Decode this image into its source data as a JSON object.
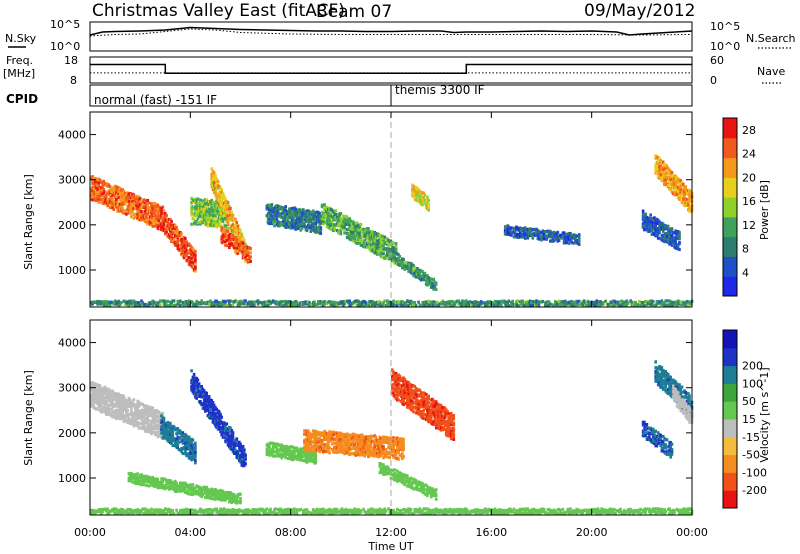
{
  "header": {
    "radar": "Christmas Valley East (fitACF)",
    "beam": "Beam 07",
    "date": "09/May/2012"
  },
  "noise_panel": {
    "left_label": "N.Sky",
    "right_label": "N.Search",
    "left_ticks": [
      "10^5",
      "10^0"
    ],
    "right_ticks": [
      "10^5",
      "10^0"
    ]
  },
  "freq_panel": {
    "left_label_1": "Freq.",
    "left_label_2": "[MHz]",
    "right_label": "Nave",
    "left_ticks": [
      "18",
      "8"
    ],
    "right_ticks": [
      "60",
      "0"
    ]
  },
  "cpid_panel": {
    "label": "CPID",
    "modes": [
      {
        "text": "normal (fast) -151 IF",
        "start_hour": 0.0
      },
      {
        "text": "themis 3300 IF",
        "start_hour": 12.0
      }
    ]
  },
  "x_axis": {
    "label": "Time UT",
    "ticks": [
      "00:00",
      "04:00",
      "08:00",
      "12:00",
      "16:00",
      "20:00",
      "00:00"
    ]
  },
  "colors": {
    "power": [
      "#1e28e6",
      "#1e50c8",
      "#2e7d6e",
      "#3fa25c",
      "#8ed12c",
      "#e8cf1e",
      "#f6971e",
      "#f05a1e",
      "#e81414"
    ],
    "velocity": [
      "#e81414",
      "#f2501a",
      "#f58c1e",
      "#f5bb3a",
      "#bdbdbd",
      "#64c850",
      "#3ca53c",
      "#1e7d96",
      "#1e32c8",
      "#1414b4"
    ]
  },
  "chart_data": [
    {
      "type": "line",
      "title": "",
      "series": [
        {
          "name": "N.Sky",
          "x": [
            0,
            0.5,
            1,
            2,
            3,
            4,
            5,
            6,
            7,
            8,
            9,
            10,
            11,
            12,
            13,
            14,
            14.5,
            15,
            16,
            17,
            18,
            19,
            20,
            21,
            21.5,
            22,
            23,
            24
          ],
          "values": [
            2.8,
            3.4,
            3.5,
            3.6,
            3.8,
            4.3,
            4.1,
            3.9,
            3.8,
            3.7,
            3.6,
            3.6,
            3.5,
            3.5,
            3.6,
            3.6,
            3.3,
            3.4,
            3.4,
            3.5,
            3.6,
            3.5,
            3.6,
            3.4,
            2.8,
            3.0,
            3.3,
            3.6
          ]
        },
        {
          "name": "N.Search",
          "x": [
            0,
            1,
            2,
            3,
            4,
            5,
            6,
            8,
            10,
            12,
            14,
            16,
            18,
            20,
            22,
            24
          ],
          "values": [
            2.6,
            2.9,
            3.0,
            3.5,
            4.0,
            3.8,
            3.3,
            3.0,
            2.9,
            2.9,
            2.9,
            2.9,
            2.9,
            2.9,
            2.8,
            2.9
          ]
        }
      ],
      "x_range": [
        0,
        24
      ],
      "ylim": [
        0,
        5
      ],
      "y_ticks": [
        "10^0",
        "10^5"
      ]
    },
    {
      "type": "line",
      "title": "",
      "series": [
        {
          "name": "Freq.",
          "x": [
            0,
            3,
            3,
            15,
            15,
            24
          ],
          "values": [
            15.5,
            15.5,
            11.5,
            11.5,
            15.5,
            15.5
          ]
        },
        {
          "name": "Nave",
          "x": [
            0,
            24
          ],
          "values": [
            22,
            22
          ]
        }
      ],
      "x_range": [
        0,
        24
      ],
      "ylim": [
        8,
        18
      ],
      "y2lim": [
        0,
        60
      ]
    },
    {
      "type": "heatmap",
      "title": "",
      "ylabel": "Slant Range [km]",
      "colorbar_label": "Power [dB]",
      "colorbar_ticks": [
        4,
        8,
        12,
        16,
        20,
        24,
        28
      ],
      "clim": [
        0,
        30
      ],
      "x_range": [
        0,
        24
      ],
      "ylim": [
        180,
        4500
      ],
      "y_ticks": [
        1000,
        2000,
        3000,
        4000
      ],
      "x_ticks": [
        "00:00",
        "04:00",
        "08:00",
        "12:00",
        "16:00",
        "20:00",
        "00:00"
      ],
      "regions": [
        {
          "t0": 0.0,
          "t1": 2.9,
          "r_start0": 2550,
          "r_start1": 1850,
          "width": 550,
          "level": 24
        },
        {
          "t0": 2.8,
          "t1": 4.2,
          "r_start0": 1900,
          "r_start1": 900,
          "width": 450,
          "level": 26
        },
        {
          "t0": 4.0,
          "t1": 5.5,
          "r_start0": 2000,
          "r_start1": 1900,
          "width": 600,
          "level": 14
        },
        {
          "t0": 4.8,
          "t1": 6.2,
          "r_start0": 2800,
          "r_start1": 1100,
          "width": 450,
          "level": 20
        },
        {
          "t0": 5.2,
          "t1": 6.4,
          "r_start0": 1600,
          "r_start1": 1100,
          "width": 350,
          "level": 26
        },
        {
          "t0": 7.0,
          "t1": 9.2,
          "r_start0": 2000,
          "r_start1": 1800,
          "width": 450,
          "level": 8
        },
        {
          "t0": 9.2,
          "t1": 12.2,
          "r_start0": 2000,
          "r_start1": 1100,
          "width": 450,
          "level": 12
        },
        {
          "t0": 12.0,
          "t1": 13.8,
          "r_start0": 1200,
          "r_start1": 500,
          "width": 250,
          "level": 10
        },
        {
          "t0": 12.8,
          "t1": 13.5,
          "r_start0": 2600,
          "r_start1": 2300,
          "width": 300,
          "level": 18
        },
        {
          "t0": 16.5,
          "t1": 19.5,
          "r_start0": 1750,
          "r_start1": 1550,
          "width": 250,
          "level": 6
        },
        {
          "t0": 22.5,
          "t1": 24.0,
          "r_start0": 3100,
          "r_start1": 2200,
          "width": 500,
          "level": 22
        },
        {
          "t0": 22.0,
          "t1": 23.5,
          "r_start0": 1900,
          "r_start1": 1400,
          "width": 400,
          "level": 6
        },
        {
          "t0": 0.0,
          "t1": 24.0,
          "r_start0": 200,
          "r_start1": 200,
          "width": 120,
          "level": 10
        }
      ]
    },
    {
      "type": "heatmap",
      "title": "",
      "ylabel": "Slant Range [km]",
      "xlabel": "Time UT",
      "colorbar_label": "Velocity [m s^-1]",
      "colorbar_ticks": [
        -200,
        -100,
        -50,
        -15,
        15,
        50,
        100,
        200
      ],
      "clim": [
        -250,
        250
      ],
      "x_range": [
        0,
        24
      ],
      "ylim": [
        180,
        4500
      ],
      "y_ticks": [
        1000,
        2000,
        3000,
        4000
      ],
      "x_ticks": [
        "00:00",
        "04:00",
        "08:00",
        "12:00",
        "16:00",
        "20:00",
        "00:00"
      ],
      "regions": [
        {
          "t0": 0.0,
          "t1": 2.9,
          "r_start0": 2550,
          "r_start1": 1850,
          "width": 600,
          "level": 0
        },
        {
          "t0": 2.8,
          "t1": 4.2,
          "r_start0": 1900,
          "r_start1": 1300,
          "width": 450,
          "level": 180
        },
        {
          "t0": 4.0,
          "t1": 6.2,
          "r_start0": 2900,
          "r_start1": 1100,
          "width": 500,
          "level": 220
        },
        {
          "t0": 1.5,
          "t1": 6.0,
          "r_start0": 900,
          "r_start1": 400,
          "width": 250,
          "level": 40
        },
        {
          "t0": 7.0,
          "t1": 9.0,
          "r_start0": 1500,
          "r_start1": 1300,
          "width": 300,
          "level": 30
        },
        {
          "t0": 8.5,
          "t1": 12.5,
          "r_start0": 1600,
          "r_start1": 1400,
          "width": 500,
          "level": -80
        },
        {
          "t0": 12.0,
          "t1": 14.5,
          "r_start0": 2800,
          "r_start1": 1800,
          "width": 600,
          "level": -180
        },
        {
          "t0": 11.5,
          "t1": 13.8,
          "r_start0": 1100,
          "r_start1": 500,
          "width": 250,
          "level": 40
        },
        {
          "t0": 22.5,
          "t1": 24.0,
          "r_start0": 3100,
          "r_start1": 2300,
          "width": 450,
          "level": 180
        },
        {
          "t0": 22.0,
          "t1": 23.2,
          "r_start0": 1900,
          "r_start1": 1400,
          "width": 350,
          "level": 200
        },
        {
          "t0": 23.2,
          "t1": 24.0,
          "r_start0": 2700,
          "r_start1": 2100,
          "width": 350,
          "level": 0
        },
        {
          "t0": 0.0,
          "t1": 24.0,
          "r_start0": 200,
          "r_start1": 200,
          "width": 120,
          "level": 30
        }
      ]
    }
  ]
}
